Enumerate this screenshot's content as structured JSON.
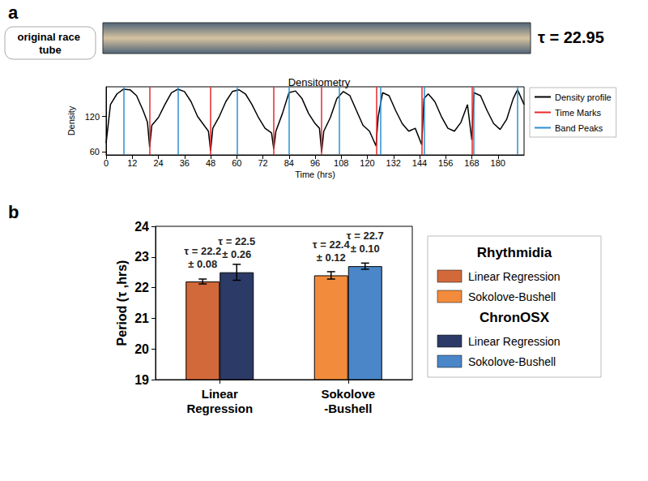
{
  "chart_data": [
    {
      "panel": "a",
      "type": "line",
      "title": "Densitometry",
      "annotations": [
        "original race tube",
        "τ = 22.95"
      ],
      "x_label": "Time (hrs)",
      "y_label": "Density",
      "xlim": [
        0,
        192
      ],
      "xticks": [
        0,
        12,
        24,
        36,
        48,
        60,
        72,
        84,
        96,
        108,
        120,
        132,
        144,
        156,
        168,
        180
      ],
      "ylim": [
        55,
        170
      ],
      "yticks": [
        60,
        120
      ],
      "legend": "right",
      "series": [
        {
          "name": "Density profile",
          "color": "#000000",
          "type": "line",
          "x": [
            0,
            2,
            5,
            8,
            11,
            14,
            17,
            19,
            20,
            21,
            24,
            27,
            30,
            33,
            36,
            39,
            42,
            45,
            47,
            48,
            49,
            52,
            55,
            58,
            61,
            64,
            67,
            70,
            73,
            76,
            77,
            78,
            81,
            84,
            87,
            90,
            93,
            96,
            98,
            99,
            100,
            103,
            106,
            109,
            112,
            115,
            118,
            121,
            124,
            125,
            127,
            130,
            133,
            136,
            139,
            142,
            145,
            146,
            148,
            151,
            154,
            157,
            160,
            163,
            166,
            168,
            169,
            172,
            175,
            178,
            181,
            184,
            187,
            189,
            192
          ],
          "values": [
            75,
            140,
            158,
            166,
            165,
            155,
            130,
            110,
            68,
            105,
            118,
            140,
            160,
            166,
            162,
            145,
            120,
            105,
            95,
            62,
            100,
            120,
            145,
            162,
            165,
            158,
            140,
            118,
            100,
            92,
            65,
            95,
            125,
            160,
            163,
            150,
            125,
            108,
            100,
            60,
            95,
            118,
            150,
            162,
            155,
            130,
            105,
            95,
            70,
            120,
            160,
            155,
            130,
            108,
            95,
            100,
            72,
            150,
            158,
            145,
            120,
            100,
            95,
            110,
            140,
            80,
            160,
            155,
            130,
            108,
            98,
            115,
            150,
            165,
            140
          ]
        },
        {
          "name": "Time Marks",
          "color": "#e8282b",
          "type": "vline",
          "x": [
            20,
            48,
            77,
            99,
            124,
            145,
            168
          ]
        },
        {
          "name": "Band Peaks",
          "color": "#2a8fd6",
          "type": "vline",
          "x": [
            8,
            33,
            60,
            84,
            107,
            126,
            146,
            169,
            189
          ]
        }
      ]
    },
    {
      "panel": "b",
      "type": "bar",
      "y_label": "Period (τ ,hrs)",
      "categories": [
        "Linear Regression",
        "Sokolove-Bushell"
      ],
      "ylim": [
        19,
        24
      ],
      "yticks": [
        19,
        20,
        21,
        22,
        23,
        24
      ],
      "data_labels": true,
      "legend": "right",
      "series": [
        {
          "name": "Rhythmidia",
          "colors": [
            "#d2693a",
            "#f28c3c"
          ],
          "values": [
            22.2,
            22.4
          ],
          "errors": [
            0.08,
            0.12
          ],
          "value_labels": [
            "τ = 22.2 ± 0.08",
            "τ = 22.4 ± 0.12"
          ]
        },
        {
          "name": "ChronOSX",
          "colors": [
            "#2c3a68",
            "#4a86c8"
          ],
          "values": [
            22.5,
            22.7
          ],
          "errors": [
            0.26,
            0.1
          ],
          "value_labels": [
            "τ = 22.5 ± 0.26",
            "τ = 22.7 ± 0.10"
          ]
        }
      ]
    }
  ]
}
